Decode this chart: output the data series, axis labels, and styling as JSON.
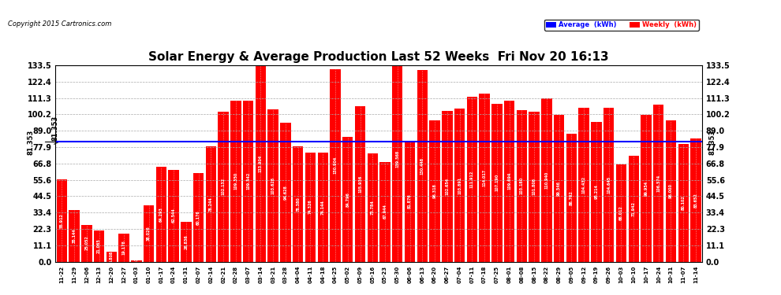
{
  "title": "Solar Energy & Average Production Last 52 Weeks  Fri Nov 20 16:13",
  "copyright": "Copyright 2015 Cartronics.com",
  "average_label": "81.353",
  "average_value": 81.353,
  "right_label": "81.353",
  "background_color": "#ffffff",
  "bar_color": "#ff0000",
  "avg_line_color": "#0000ff",
  "grid_color": "#aaaaaa",
  "legend_avg_bg": "#0000ff",
  "legend_weekly_bg": "#ff0000",
  "ylim": [
    0.0,
    133.5
  ],
  "yticks": [
    0.0,
    11.1,
    22.3,
    33.4,
    44.5,
    55.6,
    66.8,
    77.9,
    89.0,
    100.2,
    111.3,
    122.4,
    133.5
  ],
  "dates": [
    "11-22",
    "11-29",
    "12-06",
    "12-13",
    "12-20",
    "12-27",
    "01-03",
    "01-10",
    "01-17",
    "01-24",
    "01-31",
    "02-07",
    "02-14",
    "02-21",
    "02-28",
    "03-07",
    "03-14",
    "03-21",
    "03-28",
    "04-04",
    "04-11",
    "04-18",
    "04-25",
    "05-02",
    "05-09",
    "05-16",
    "05-23",
    "05-30",
    "06-06",
    "06-13",
    "06-20",
    "06-27",
    "07-04",
    "07-11",
    "07-18",
    "07-25",
    "08-01",
    "08-08",
    "08-15",
    "08-22",
    "08-29",
    "09-05",
    "09-12",
    "09-19",
    "09-26",
    "10-03",
    "10-10",
    "10-17",
    "10-24",
    "10-31",
    "11-07",
    "11-14"
  ],
  "values": [
    55.912,
    35.144,
    25.052,
    21.065,
    6.808,
    19.178,
    1.03,
    38.026,
    64.293,
    62.544,
    26.836,
    60.176,
    78.244,
    102.132,
    109.35,
    109.542,
    133.904,
    103.628,
    94.628,
    78.38,
    74.326,
    74.144,
    130.904,
    84.796,
    105.936,
    73.784,
    67.944,
    139.568,
    81.876,
    130.448,
    96.318,
    102.654,
    103.891,
    111.912,
    114.017,
    107.19,
    109.694,
    103.18,
    101.808,
    110.94,
    99.546,
    86.762,
    104.432,
    95.214,
    104.645,
    66.012,
    71.942,
    99.954,
    106.574,
    96.0,
    80.102,
    83.652
  ],
  "bar_labels": [
    "55.912",
    "35.144",
    "25.052",
    "21.065",
    "6.808",
    "19.178",
    "1.030",
    "38.026",
    "64.293",
    "62.544",
    "26.836",
    "60.176",
    "78.244",
    "102.132",
    "109.350",
    "109.542",
    "133.904",
    "103.628",
    "94.628",
    "78.380",
    "74.326",
    "74.144",
    "130.904",
    "84.796",
    "105.936",
    "73.784",
    "67.944",
    "139.568",
    "81.876",
    "130.448",
    "96.318",
    "102.654",
    "103.891",
    "111.912",
    "114.017",
    "107.190",
    "109.694",
    "103.180",
    "101.808",
    "110.940",
    "99.546",
    "86.762",
    "104.432",
    "95.214",
    "104.645",
    "66.012",
    "71.942",
    "99.954",
    "106.574",
    "96.000",
    "80.102",
    "83.652"
  ]
}
